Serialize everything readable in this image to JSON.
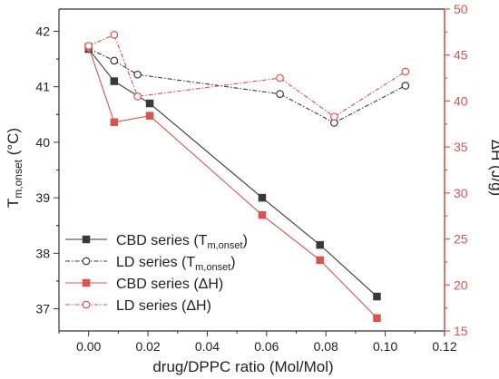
{
  "colors": {
    "dark": "#3a3a3a",
    "red": "#d9534f",
    "axis_right": "#d9534f"
  },
  "chart_data": {
    "type": "line",
    "xlabel": "drug/DPPC ratio (Mol/Mol)",
    "ylabel_left": {
      "main": "T",
      "sub": "m,onset",
      "unit": " (°C)"
    },
    "ylabel_right": "ΔH (J/g)",
    "xlim": [
      -0.01,
      0.12
    ],
    "ylim_left": [
      36.6,
      42.4
    ],
    "ylim_right": [
      15,
      50
    ],
    "x_ticks": [
      "0.00",
      "0.02",
      "0.04",
      "0.06",
      "0.08",
      "0.10",
      "0.12"
    ],
    "y_left_ticks": [
      "37",
      "38",
      "39",
      "40",
      "41",
      "42"
    ],
    "y_right_ticks": [
      "15",
      "20",
      "25",
      "30",
      "35",
      "40",
      "45",
      "50"
    ],
    "series": [
      {
        "name": "CBD series (T",
        "name_sub": "m,onset",
        "name_tail": ")",
        "axis": "left",
        "marker": "filled-square",
        "line": "solid",
        "color": "#3a3a3a",
        "x": [
          0.0,
          0.0086,
          0.0206,
          0.0585,
          0.078,
          0.0972
        ],
        "y": [
          41.68,
          41.1,
          40.7,
          39.0,
          38.15,
          37.22
        ]
      },
      {
        "name": "LD series (T",
        "name_sub": "m,onset",
        "name_tail": ")",
        "axis": "left",
        "marker": "open-circle",
        "line": "dashdot",
        "color": "#3a3a3a",
        "x": [
          0.0,
          0.0086,
          0.0165,
          0.0645,
          0.0828,
          0.1068
        ],
        "y": [
          41.69,
          41.47,
          41.22,
          40.87,
          40.35,
          41.02
        ]
      },
      {
        "name": "CBD series (ΔH)",
        "axis": "right",
        "marker": "filled-square",
        "line": "solid",
        "color": "#d9534f",
        "x": [
          0.0,
          0.0086,
          0.0206,
          0.0585,
          0.078,
          0.0972
        ],
        "y": [
          45.9,
          37.7,
          38.4,
          27.6,
          22.7,
          16.4
        ]
      },
      {
        "name": "LD series (ΔH)",
        "axis": "right",
        "marker": "open-circle",
        "line": "dashdot",
        "color": "#d9534f",
        "x": [
          0.0,
          0.0086,
          0.0165,
          0.0645,
          0.0828,
          0.1068
        ],
        "y": [
          46.0,
          47.2,
          40.5,
          42.5,
          38.3,
          43.2
        ]
      }
    ]
  }
}
